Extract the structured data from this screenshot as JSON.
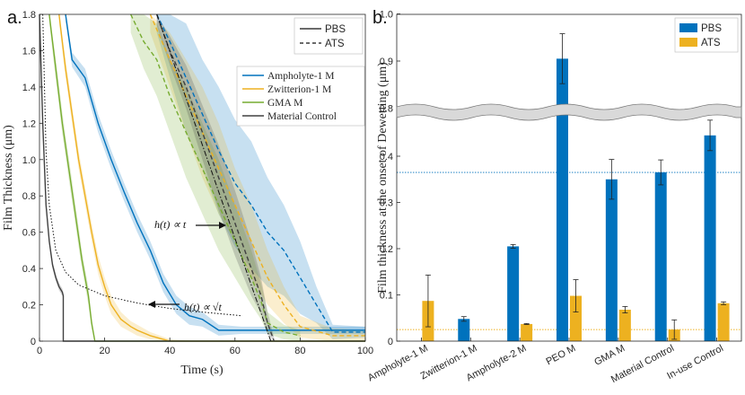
{
  "chart_data": [
    {
      "type": "line",
      "panel_label": "a.",
      "title": "",
      "xlabel": "Time (s)",
      "ylabel": "Film Thickness (μm)",
      "xlim": [
        0,
        100
      ],
      "ylim": [
        0,
        1.8
      ],
      "xticks": [
        "0",
        "20",
        "40",
        "60",
        "80",
        "100"
      ],
      "yticks": [
        "0",
        "0.2",
        "0.4",
        "0.6",
        "0.8",
        "1.0",
        "1.2",
        "1.4",
        "1.6",
        "1.8"
      ],
      "legend_style": [
        {
          "name": "PBS",
          "dash": "solid"
        },
        {
          "name": "ATS",
          "dash": "dashed"
        }
      ],
      "legend_series": [
        "Ampholyte-1 M",
        "Zwitterion-1 M",
        "GMA M",
        "Material Control"
      ],
      "annotations": [
        {
          "text": "h(t) ∝ t",
          "x": 44,
          "y": 0.68
        },
        {
          "text": "h(t) ∝ √t",
          "x": 42,
          "y": 0.18
        }
      ],
      "series": [
        {
          "name": "Ampholyte-1 M PBS",
          "color": "#0072BD",
          "dash": "solid",
          "x": [
            8,
            10,
            14,
            18,
            22,
            26,
            30,
            34,
            38,
            42,
            46,
            50,
            55,
            62,
            70,
            80,
            100
          ],
          "y": [
            1.8,
            1.55,
            1.45,
            1.2,
            1.0,
            0.82,
            0.65,
            0.5,
            0.32,
            0.2,
            0.14,
            0.12,
            0.06,
            0.06,
            0.06,
            0.06,
            0.06
          ],
          "band": [
            0.04,
            0.04,
            0.05,
            0.05,
            0.05,
            0.05,
            0.05,
            0.05,
            0.05,
            0.05,
            0.05,
            0.04,
            0.03,
            0.02,
            0.02,
            0.02,
            0.02
          ]
        },
        {
          "name": "Ampholyte-1 M ATS",
          "color": "#0072BD",
          "dash": "dashed",
          "x": [
            36,
            40,
            45,
            50,
            55,
            60,
            65,
            70,
            75,
            80,
            85,
            90,
            100
          ],
          "y": [
            1.8,
            1.65,
            1.45,
            1.25,
            1.05,
            0.87,
            0.75,
            0.6,
            0.5,
            0.35,
            0.2,
            0.05,
            0.05
          ],
          "band": [
            0.1,
            0.2,
            0.3,
            0.3,
            0.35,
            0.35,
            0.35,
            0.3,
            0.25,
            0.2,
            0.1,
            0.04,
            0.03
          ]
        },
        {
          "name": "Zwitterion-1 M PBS",
          "color": "#EDB120",
          "dash": "solid",
          "x": [
            6,
            8,
            10,
            12,
            14,
            16,
            18,
            20,
            22,
            25,
            28,
            30,
            34,
            40,
            50,
            60,
            100
          ],
          "y": [
            1.8,
            1.5,
            1.25,
            1.0,
            0.8,
            0.6,
            0.42,
            0.3,
            0.2,
            0.12,
            0.08,
            0.06,
            0.03,
            0.0,
            0.0,
            0.0,
            0.0
          ],
          "band": [
            0.05,
            0.05,
            0.05,
            0.05,
            0.05,
            0.05,
            0.05,
            0.05,
            0.05,
            0.04,
            0.03,
            0.03,
            0.02,
            0.01,
            0.0,
            0.0,
            0.0
          ]
        },
        {
          "name": "Zwitterion-1 M ATS",
          "color": "#EDB120",
          "dash": "dashed",
          "x": [
            34,
            40,
            45,
            50,
            55,
            60,
            65,
            70,
            75,
            80,
            90,
            100
          ],
          "y": [
            1.8,
            1.55,
            1.35,
            1.15,
            0.95,
            0.75,
            0.55,
            0.35,
            0.2,
            0.08,
            0.03,
            0.03
          ],
          "band": [
            0.1,
            0.15,
            0.2,
            0.25,
            0.25,
            0.2,
            0.2,
            0.15,
            0.1,
            0.06,
            0.04,
            0.03
          ]
        },
        {
          "name": "GMA M PBS",
          "color": "#77AC30",
          "dash": "solid",
          "x": [
            3,
            5,
            7,
            9,
            11,
            13,
            15,
            16,
            17,
            20,
            30,
            100
          ],
          "y": [
            1.8,
            1.5,
            1.2,
            0.95,
            0.7,
            0.45,
            0.25,
            0.1,
            0.0,
            0.0,
            0.0,
            0.0
          ],
          "band": [
            0.05,
            0.06,
            0.06,
            0.06,
            0.06,
            0.05,
            0.05,
            0.03,
            0.0,
            0.0,
            0.0,
            0.0
          ]
        },
        {
          "name": "GMA M ATS",
          "color": "#77AC30",
          "dash": "dashed",
          "x": [
            28,
            32,
            36,
            40,
            45,
            50,
            55,
            60,
            65,
            68,
            70,
            75,
            80
          ],
          "y": [
            1.8,
            1.65,
            1.55,
            1.35,
            1.15,
            0.95,
            0.75,
            0.55,
            0.35,
            0.22,
            0.1,
            0.05,
            0.03
          ],
          "band": [
            0.1,
            0.15,
            0.2,
            0.2,
            0.25,
            0.25,
            0.25,
            0.2,
            0.15,
            0.1,
            0.06,
            0.04,
            0.03
          ]
        },
        {
          "name": "Material Control PBS",
          "color": "#404040",
          "dash": "solid",
          "x": [
            0,
            1,
            2,
            3,
            4,
            5,
            6,
            7,
            7.3,
            7.3,
            10,
            100
          ],
          "y": [
            1.8,
            1.2,
            0.75,
            0.55,
            0.42,
            0.35,
            0.3,
            0.27,
            0.25,
            0.0,
            0.0,
            0.0
          ],
          "band": [
            0.02,
            0.02,
            0.02,
            0.02,
            0.02,
            0.02,
            0.02,
            0.02,
            0.02,
            0.0,
            0.0,
            0.0
          ]
        },
        {
          "name": "Material Control ATS",
          "color": "#404040",
          "dash": "dashed",
          "x": [
            36,
            40,
            45,
            50,
            55,
            60,
            65,
            68,
            70,
            72
          ],
          "y": [
            1.8,
            1.6,
            1.4,
            1.15,
            0.9,
            0.65,
            0.4,
            0.25,
            0.1,
            0.0
          ],
          "band": [
            0.06,
            0.08,
            0.12,
            0.15,
            0.18,
            0.18,
            0.15,
            0.1,
            0.06,
            0.02
          ]
        },
        {
          "name": "Linear fit",
          "color": "#111111",
          "dash": "dashdot",
          "x": [
            36,
            71
          ],
          "y": [
            1.8,
            0.0
          ]
        },
        {
          "name": "Sqrt fit",
          "color": "#111111",
          "dash": "dotted",
          "x": [
            1,
            2,
            3,
            5,
            8,
            12,
            20,
            30,
            40,
            50,
            62
          ],
          "y": [
            1.8,
            1.05,
            0.75,
            0.5,
            0.38,
            0.31,
            0.25,
            0.21,
            0.18,
            0.16,
            0.14
          ]
        }
      ]
    },
    {
      "type": "bar",
      "panel_label": "b.",
      "title": "",
      "xlabel": "",
      "ylabel": "Film thickness at the onset of Dewetting (μm)",
      "categories": [
        "Ampholyte-1 M",
        "Zwitterion-1 M",
        "Ampholyte-2 M",
        "PEO M",
        "GMA M",
        "Material Control",
        "In-use Control"
      ],
      "axis_break": {
        "between": [
          0.5,
          0.75
        ]
      },
      "yticks": [
        "0",
        "0.1",
        "0.2",
        "0.3",
        "0.4",
        "0.8",
        "0.9",
        "1.0"
      ],
      "legend": [
        "PBS",
        "ATS"
      ],
      "legend_position": "top-right",
      "reference_lines": [
        {
          "series": "PBS",
          "value": 0.365
        },
        {
          "series": "ATS",
          "value": 0.025
        }
      ],
      "series": [
        {
          "name": "PBS",
          "color": "#0072BD",
          "values": [
            null,
            0.048,
            0.205,
            0.905,
            0.35,
            0.365,
            0.445
          ],
          "errors": [
            null,
            0.005,
            0.004,
            0.053,
            0.043,
            0.027,
            0.033
          ]
        },
        {
          "name": "ATS",
          "color": "#EDB120",
          "values": [
            0.087,
            null,
            0.037,
            0.098,
            0.068,
            0.025,
            0.082
          ],
          "errors": [
            0.056,
            null,
            0.001,
            0.035,
            0.007,
            0.021,
            0.003
          ]
        }
      ]
    }
  ]
}
